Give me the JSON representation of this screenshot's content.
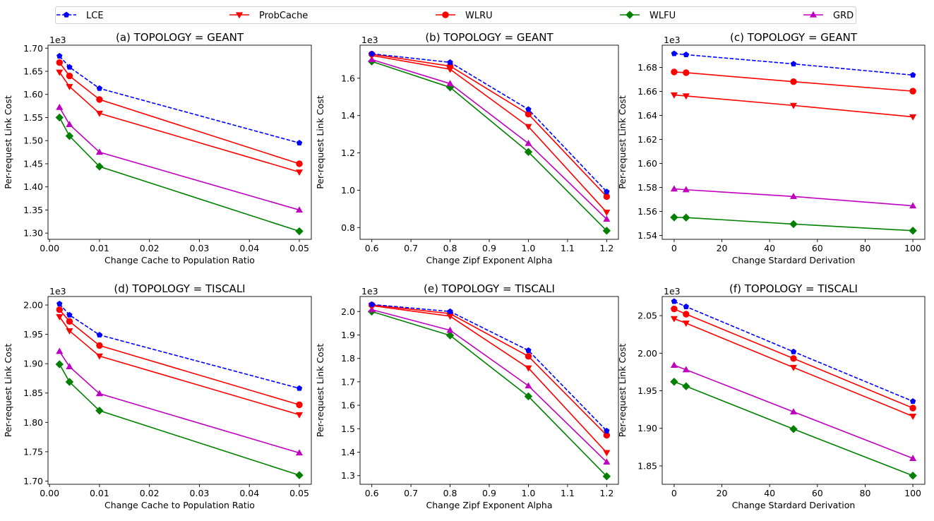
{
  "legend": [
    {
      "name": "LCE",
      "color": "#0000ff",
      "marker": "pentagon",
      "dash": true
    },
    {
      "name": "ProbCache",
      "color": "#ff0000",
      "marker": "triangle-down",
      "dash": false
    },
    {
      "name": "WLRU",
      "color": "#ff0000",
      "marker": "circle",
      "dash": false
    },
    {
      "name": "WLFU",
      "color": "#008000",
      "marker": "diamond",
      "dash": false
    },
    {
      "name": "GRD",
      "color": "#bf00bf",
      "marker": "triangle-up",
      "dash": false
    }
  ],
  "chart_data": [
    {
      "type": "line",
      "title": "(a) TOPOLOGY = GEANT",
      "xlabel": "Change Cache to Population Ratio",
      "ylabel": "Per-request Link Cost",
      "offset_label": "1e3",
      "x": [
        0.002,
        0.004,
        0.01,
        0.05
      ],
      "xlim": [
        -0.0003,
        0.0524
      ],
      "ylim": [
        1.2865,
        1.7065
      ],
      "xticks": [
        0.0,
        0.01,
        0.02,
        0.03,
        0.04,
        0.05
      ],
      "xtick_labels": [
        "0.00",
        "0.01",
        "0.02",
        "0.03",
        "0.04",
        "0.05"
      ],
      "yticks": [
        1.3,
        1.35,
        1.4,
        1.45,
        1.5,
        1.55,
        1.6,
        1.65,
        1.7
      ],
      "ytick_labels": [
        "1.30",
        "1.35",
        "1.40",
        "1.45",
        "1.50",
        "1.55",
        "1.60",
        "1.65",
        "1.70"
      ],
      "series": [
        {
          "name": "LCE",
          "values": [
            1.683,
            1.659,
            1.613,
            1.495
          ]
        },
        {
          "name": "ProbCache",
          "values": [
            1.648,
            1.617,
            1.559,
            1.432
          ]
        },
        {
          "name": "WLRU",
          "values": [
            1.669,
            1.64,
            1.589,
            1.45
          ]
        },
        {
          "name": "WLFU",
          "values": [
            1.55,
            1.51,
            1.444,
            1.304
          ]
        },
        {
          "name": "GRD",
          "values": [
            1.572,
            1.535,
            1.475,
            1.35
          ]
        }
      ]
    },
    {
      "type": "line",
      "title": "(b) TOPOLOGY = GEANT",
      "xlabel": "Change Zipf Exponent Alpha",
      "ylabel": "Per-request Link Cost",
      "offset_label": "1e3",
      "x": [
        0.6,
        0.8,
        1.0,
        1.2
      ],
      "xlim": [
        0.57,
        1.23
      ],
      "ylim": [
        0.737,
        1.777
      ],
      "xticks": [
        0.6,
        0.7,
        0.8,
        0.9,
        1.0,
        1.1,
        1.2
      ],
      "xtick_labels": [
        "0.6",
        "0.7",
        "0.8",
        "0.9",
        "1.0",
        "1.1",
        "1.2"
      ],
      "yticks": [
        0.8,
        1.0,
        1.2,
        1.4,
        1.6
      ],
      "ytick_labels": [
        "0.8",
        "1.0",
        "1.2",
        "1.4",
        "1.6"
      ],
      "series": [
        {
          "name": "LCE",
          "values": [
            1.731,
            1.685,
            1.433,
            0.992
          ]
        },
        {
          "name": "ProbCache",
          "values": [
            1.722,
            1.648,
            1.341,
            0.882
          ]
        },
        {
          "name": "WLRU",
          "values": [
            1.729,
            1.665,
            1.408,
            0.966
          ]
        },
        {
          "name": "WLFU",
          "values": [
            1.69,
            1.551,
            1.205,
            0.783
          ]
        },
        {
          "name": "GRD",
          "values": [
            1.7,
            1.571,
            1.251,
            0.845
          ]
        }
      ]
    },
    {
      "type": "line",
      "title": "(c) TOPOLOGY = GEANT",
      "xlabel": "Change Stardard Derivation",
      "ylabel": "Per-request Link Cost",
      "offset_label": "1e3",
      "x": [
        0,
        5,
        50,
        100
      ],
      "xlim": [
        -5,
        105
      ],
      "ylim": [
        1.5368,
        1.6985
      ],
      "xticks": [
        0,
        20,
        40,
        60,
        80,
        100
      ],
      "xtick_labels": [
        "0",
        "20",
        "40",
        "60",
        "80",
        "100"
      ],
      "yticks": [
        1.54,
        1.56,
        1.58,
        1.6,
        1.62,
        1.64,
        1.66,
        1.68
      ],
      "ytick_labels": [
        "1.54",
        "1.56",
        "1.58",
        "1.60",
        "1.62",
        "1.64",
        "1.66",
        "1.68"
      ],
      "series": [
        {
          "name": "LCE",
          "values": [
            1.6915,
            1.6906,
            1.6829,
            1.6736
          ]
        },
        {
          "name": "ProbCache",
          "values": [
            1.657,
            1.6562,
            1.6483,
            1.6388
          ]
        },
        {
          "name": "WLRU",
          "values": [
            1.6762,
            1.6756,
            1.6681,
            1.6602
          ]
        },
        {
          "name": "WLFU",
          "values": [
            1.5551,
            1.5549,
            1.5495,
            1.544
          ]
        },
        {
          "name": "GRD",
          "values": [
            1.5788,
            1.5781,
            1.5725,
            1.5647
          ]
        }
      ]
    },
    {
      "type": "line",
      "title": "(d) TOPOLOGY = TISCALI",
      "xlabel": "Change Cache to Population Ratio",
      "ylabel": "Per-request Link Cost",
      "offset_label": "1e3",
      "x": [
        0.002,
        0.004,
        0.01,
        0.05
      ],
      "xlim": [
        -0.0003,
        0.0524
      ],
      "ylim": [
        1.6945,
        2.0145
      ],
      "xticks": [
        0.0,
        0.01,
        0.02,
        0.03,
        0.04,
        0.05
      ],
      "xtick_labels": [
        "0.00",
        "0.01",
        "0.02",
        "0.03",
        "0.04",
        "0.05"
      ],
      "yticks": [
        1.7,
        1.75,
        1.8,
        1.85,
        1.9,
        1.95,
        2.0
      ],
      "ytick_labels": [
        "1.70",
        "1.75",
        "1.80",
        "1.85",
        "1.90",
        "1.95",
        "2.00"
      ],
      "series": [
        {
          "name": "LCE",
          "values": [
            2.002,
            1.983,
            1.949,
            1.858
          ]
        },
        {
          "name": "ProbCache",
          "values": [
            1.98,
            1.956,
            1.913,
            1.813
          ]
        },
        {
          "name": "WLRU",
          "values": [
            1.992,
            1.972,
            1.931,
            1.83
          ]
        },
        {
          "name": "WLFU",
          "values": [
            1.899,
            1.869,
            1.82,
            1.71
          ]
        },
        {
          "name": "GRD",
          "values": [
            1.921,
            1.895,
            1.849,
            1.748
          ]
        }
      ]
    },
    {
      "type": "line",
      "title": "(e) TOPOLOGY = TISCALI",
      "xlabel": "Change Zipf Exponent Alpha",
      "ylabel": "Per-request Link Cost",
      "offset_label": "1e3",
      "x": [
        0.6,
        0.8,
        1.0,
        1.2
      ],
      "xlim": [
        0.57,
        1.23
      ],
      "ylim": [
        1.263,
        2.064
      ],
      "xticks": [
        0.6,
        0.7,
        0.8,
        0.9,
        1.0,
        1.1,
        1.2
      ],
      "xtick_labels": [
        "0.6",
        "0.7",
        "0.8",
        "0.9",
        "1.0",
        "1.1",
        "1.2"
      ],
      "yticks": [
        1.3,
        1.4,
        1.5,
        1.6,
        1.7,
        1.8,
        1.9,
        2.0
      ],
      "ytick_labels": [
        "1.3",
        "1.4",
        "1.5",
        "1.6",
        "1.7",
        "1.8",
        "1.9",
        "2.0"
      ],
      "series": [
        {
          "name": "LCE",
          "values": [
            2.03,
            2.0,
            1.834,
            1.491
          ]
        },
        {
          "name": "ProbCache",
          "values": [
            2.025,
            1.98,
            1.759,
            1.398
          ]
        },
        {
          "name": "WLRU",
          "values": [
            2.028,
            1.991,
            1.809,
            1.472
          ]
        },
        {
          "name": "WLFU",
          "values": [
            2.0,
            1.898,
            1.638,
            1.297
          ]
        },
        {
          "name": "GRD",
          "values": [
            2.008,
            1.92,
            1.683,
            1.358
          ]
        }
      ]
    },
    {
      "type": "line",
      "title": "(f) TOPOLOGY = TISCALI",
      "xlabel": "Change Stardard Derivation",
      "ylabel": "Per-request Link Cost",
      "offset_label": "1e3",
      "x": [
        0,
        5,
        50,
        100
      ],
      "xlim": [
        -5,
        105
      ],
      "ylim": [
        1.8255,
        2.0755
      ],
      "xticks": [
        0,
        20,
        40,
        60,
        80,
        100
      ],
      "xtick_labels": [
        "0",
        "20",
        "40",
        "60",
        "80",
        "100"
      ],
      "yticks": [
        1.85,
        1.9,
        1.95,
        2.0,
        2.05
      ],
      "ytick_labels": [
        "1.85",
        "1.90",
        "1.95",
        "2.00",
        "2.05"
      ],
      "series": [
        {
          "name": "LCE",
          "values": [
            2.069,
            2.062,
            2.002,
            1.936
          ]
        },
        {
          "name": "ProbCache",
          "values": [
            2.046,
            2.04,
            1.981,
            1.916
          ]
        },
        {
          "name": "WLRU",
          "values": [
            2.059,
            2.052,
            1.993,
            1.927
          ]
        },
        {
          "name": "WLFU",
          "values": [
            1.962,
            1.956,
            1.899,
            1.837
          ]
        },
        {
          "name": "GRD",
          "values": [
            1.984,
            1.978,
            1.922,
            1.86
          ]
        }
      ]
    }
  ]
}
